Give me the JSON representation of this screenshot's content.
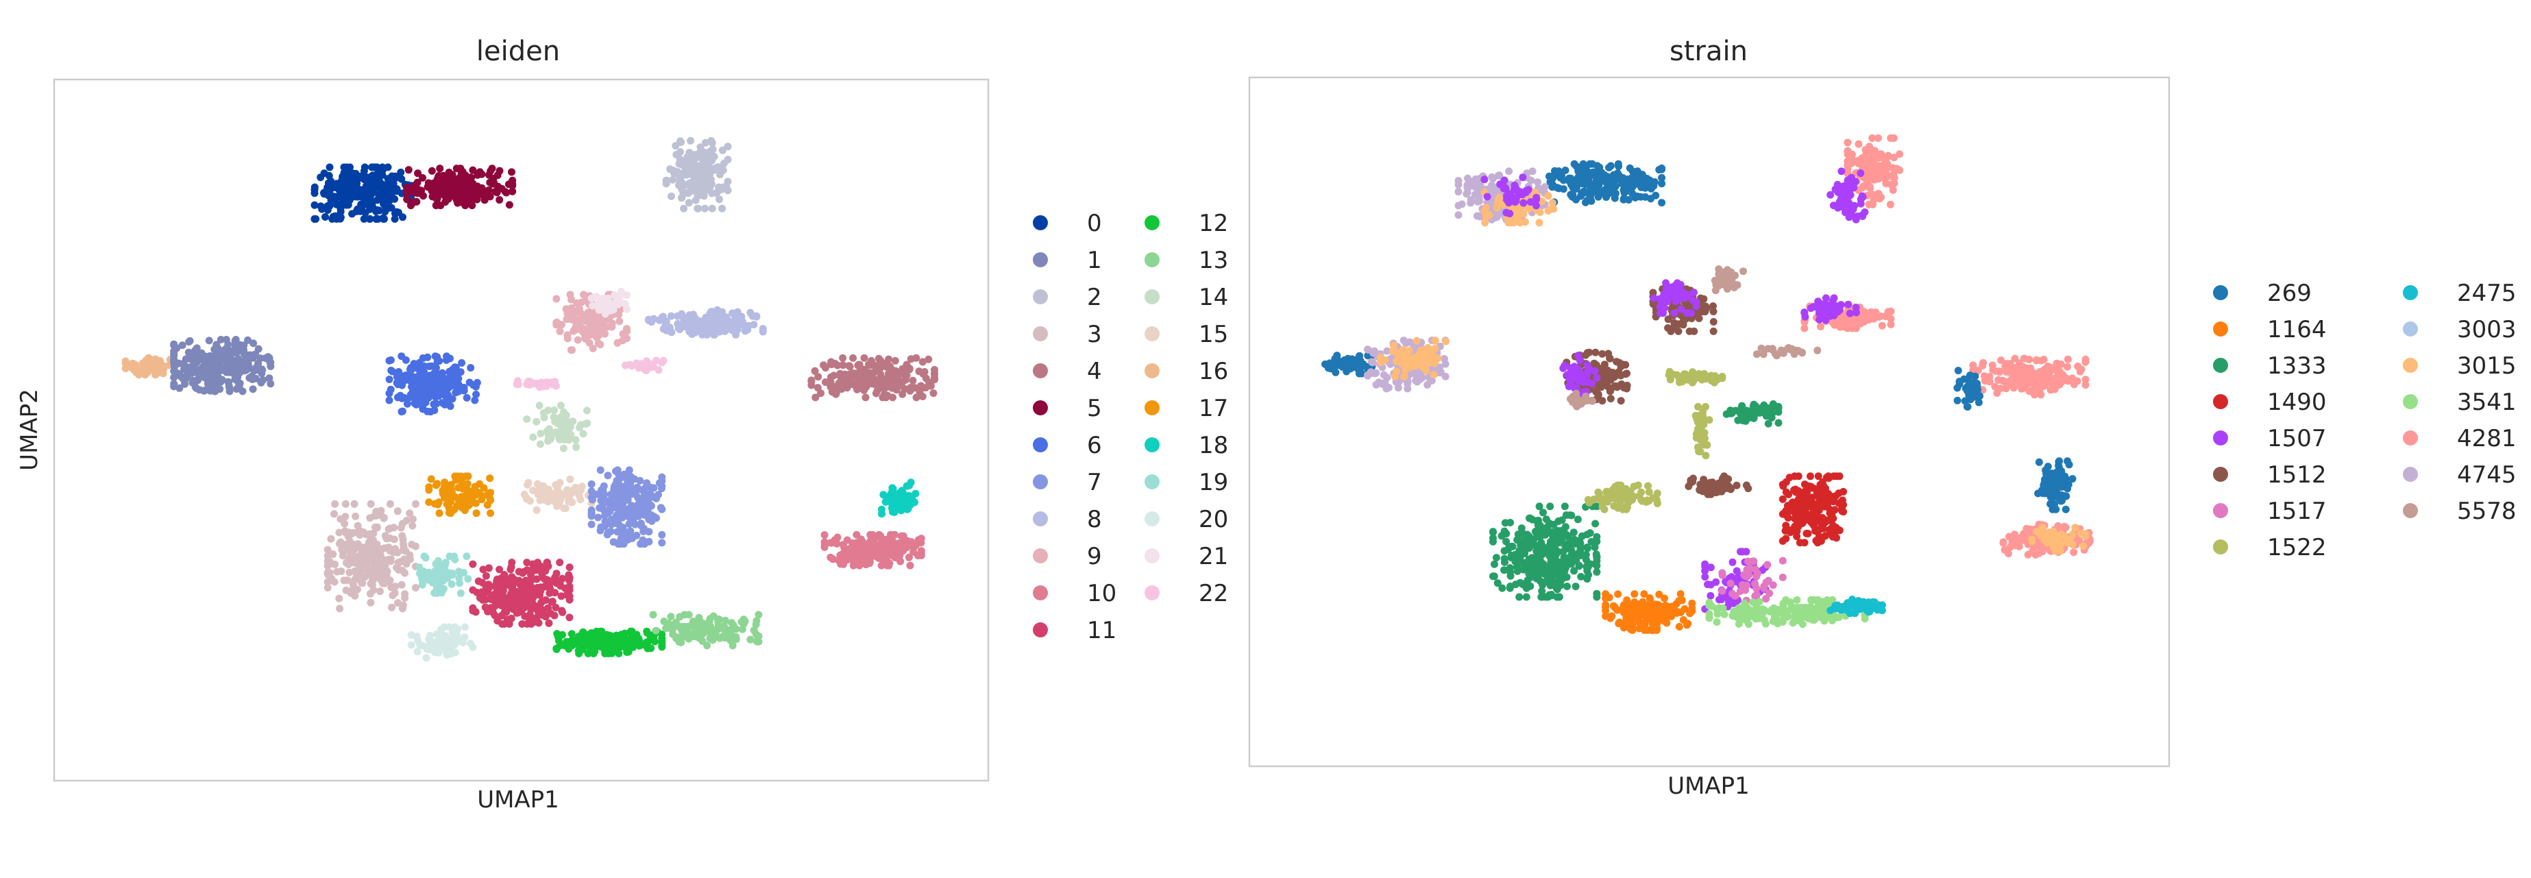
{
  "chart_data": [
    {
      "type": "scatter",
      "title": "leiden",
      "xlabel": "UMAP1",
      "ylabel": "UMAP2",
      "grid": false,
      "legend_position": "right",
      "legend_columns": 2,
      "categories": [
        {
          "label": "0",
          "color": "#023fa5"
        },
        {
          "label": "1",
          "color": "#7d87b9"
        },
        {
          "label": "2",
          "color": "#bec1d4"
        },
        {
          "label": "3",
          "color": "#d6bcc0"
        },
        {
          "label": "4",
          "color": "#bb7784"
        },
        {
          "label": "5",
          "color": "#8e063b"
        },
        {
          "label": "6",
          "color": "#4a6fe3"
        },
        {
          "label": "7",
          "color": "#8595e1"
        },
        {
          "label": "8",
          "color": "#b5bbe3"
        },
        {
          "label": "9",
          "color": "#e6afb9"
        },
        {
          "label": "10",
          "color": "#e07b91"
        },
        {
          "label": "11",
          "color": "#d33f6a"
        },
        {
          "label": "12",
          "color": "#11c638"
        },
        {
          "label": "13",
          "color": "#8dd593"
        },
        {
          "label": "14",
          "color": "#c6dec7"
        },
        {
          "label": "15",
          "color": "#ead3c6"
        },
        {
          "label": "16",
          "color": "#f0b98d"
        },
        {
          "label": "17",
          "color": "#ef9708"
        },
        {
          "label": "18",
          "color": "#0fcfc0"
        },
        {
          "label": "19",
          "color": "#9cded6"
        },
        {
          "label": "20",
          "color": "#d5eae7"
        },
        {
          "label": "21",
          "color": "#f3e1eb"
        },
        {
          "label": "22",
          "color": "#f6c4e1"
        }
      ],
      "clusters": [
        {
          "cat": "0",
          "cx": 3.2,
          "cy": 9.1,
          "rx": 0.55,
          "ry": 0.42,
          "n": 280
        },
        {
          "cat": "5",
          "cx": 4.3,
          "cy": 9.2,
          "rx": 0.6,
          "ry": 0.3,
          "n": 200
        },
        {
          "cat": "2",
          "cx": 7.0,
          "cy": 9.4,
          "rx": 0.35,
          "ry": 0.55,
          "n": 180
        },
        {
          "cat": "16",
          "cx": 0.8,
          "cy": 6.3,
          "rx": 0.3,
          "ry": 0.15,
          "n": 50
        },
        {
          "cat": "1",
          "cx": 1.6,
          "cy": 6.3,
          "rx": 0.55,
          "ry": 0.42,
          "n": 280
        },
        {
          "cat": "9",
          "cx": 5.8,
          "cy": 7.0,
          "rx": 0.4,
          "ry": 0.45,
          "n": 130
        },
        {
          "cat": "8",
          "cx": 7.1,
          "cy": 7.0,
          "rx": 0.65,
          "ry": 0.2,
          "n": 150
        },
        {
          "cat": "6",
          "cx": 4.0,
          "cy": 6.0,
          "rx": 0.5,
          "ry": 0.45,
          "n": 200
        },
        {
          "cat": "22",
          "cx": 5.2,
          "cy": 6.0,
          "rx": 0.3,
          "ry": 0.06,
          "n": 30
        },
        {
          "cat": "22",
          "cx": 6.4,
          "cy": 6.3,
          "rx": 0.3,
          "ry": 0.08,
          "n": 25
        },
        {
          "cat": "21",
          "cx": 6.0,
          "cy": 7.3,
          "rx": 0.2,
          "ry": 0.2,
          "n": 30
        },
        {
          "cat": "4",
          "cx": 9.0,
          "cy": 6.1,
          "rx": 0.7,
          "ry": 0.32,
          "n": 200
        },
        {
          "cat": "14",
          "cx": 5.4,
          "cy": 5.3,
          "rx": 0.35,
          "ry": 0.35,
          "n": 60
        },
        {
          "cat": "17",
          "cx": 4.3,
          "cy": 4.2,
          "rx": 0.35,
          "ry": 0.3,
          "n": 90
        },
        {
          "cat": "15",
          "cx": 5.4,
          "cy": 4.2,
          "rx": 0.4,
          "ry": 0.25,
          "n": 70
        },
        {
          "cat": "7",
          "cx": 6.2,
          "cy": 4.0,
          "rx": 0.4,
          "ry": 0.6,
          "n": 210
        },
        {
          "cat": "18",
          "cx": 9.3,
          "cy": 4.1,
          "rx": 0.2,
          "ry": 0.3,
          "n": 60
        },
        {
          "cat": "10",
          "cx": 9.0,
          "cy": 3.3,
          "rx": 0.55,
          "ry": 0.25,
          "n": 190
        },
        {
          "cat": "3",
          "cx": 3.3,
          "cy": 3.2,
          "rx": 0.5,
          "ry": 0.85,
          "n": 260
        },
        {
          "cat": "19",
          "cx": 4.1,
          "cy": 2.9,
          "rx": 0.3,
          "ry": 0.3,
          "n": 60
        },
        {
          "cat": "11",
          "cx": 5.0,
          "cy": 2.6,
          "rx": 0.55,
          "ry": 0.5,
          "n": 250
        },
        {
          "cat": "20",
          "cx": 4.1,
          "cy": 1.8,
          "rx": 0.35,
          "ry": 0.25,
          "n": 70
        },
        {
          "cat": "12",
          "cx": 6.0,
          "cy": 1.8,
          "rx": 0.6,
          "ry": 0.18,
          "n": 180
        },
        {
          "cat": "13",
          "cx": 7.1,
          "cy": 2.0,
          "rx": 0.6,
          "ry": 0.25,
          "n": 120
        }
      ]
    },
    {
      "type": "scatter",
      "title": "strain",
      "xlabel": "UMAP1",
      "ylabel": "",
      "grid": false,
      "legend_position": "right",
      "legend_columns": 2,
      "categories": [
        {
          "label": "269",
          "color": "#1f77b4"
        },
        {
          "label": "1164",
          "color": "#ff7f0e"
        },
        {
          "label": "1333",
          "color": "#279e68"
        },
        {
          "label": "1490",
          "color": "#d62728"
        },
        {
          "label": "1507",
          "color": "#aa40fc"
        },
        {
          "label": "1512",
          "color": "#8c564b"
        },
        {
          "label": "1517",
          "color": "#e377c2"
        },
        {
          "label": "1522",
          "color": "#b5bd61"
        },
        {
          "label": "2475",
          "color": "#17becf"
        },
        {
          "label": "3003",
          "color": "#aec7e8"
        },
        {
          "label": "3015",
          "color": "#ffbb78"
        },
        {
          "label": "3541",
          "color": "#98df8a"
        },
        {
          "label": "4281",
          "color": "#ff9896"
        },
        {
          "label": "4745",
          "color": "#c5b0d5"
        },
        {
          "label": "5578",
          "color": "#c49c94"
        }
      ],
      "clusters": [
        {
          "cat": "4745",
          "cx": 2.6,
          "cy": 9.0,
          "rx": 0.5,
          "ry": 0.4,
          "n": 200
        },
        {
          "cat": "269",
          "cx": 3.8,
          "cy": 9.2,
          "rx": 0.65,
          "ry": 0.32,
          "n": 200
        },
        {
          "cat": "3015",
          "cx": 2.8,
          "cy": 8.8,
          "rx": 0.4,
          "ry": 0.25,
          "n": 60
        },
        {
          "cat": "1507",
          "cx": 2.7,
          "cy": 9.0,
          "rx": 0.3,
          "ry": 0.3,
          "n": 40
        },
        {
          "cat": "4281",
          "cx": 6.9,
          "cy": 9.4,
          "rx": 0.3,
          "ry": 0.55,
          "n": 140
        },
        {
          "cat": "1507",
          "cx": 6.6,
          "cy": 9.0,
          "rx": 0.2,
          "ry": 0.4,
          "n": 50
        },
        {
          "cat": "269",
          "cx": 0.8,
          "cy": 6.2,
          "rx": 0.3,
          "ry": 0.15,
          "n": 60
        },
        {
          "cat": "4745",
          "cx": 1.5,
          "cy": 6.2,
          "rx": 0.45,
          "ry": 0.4,
          "n": 180
        },
        {
          "cat": "3015",
          "cx": 1.6,
          "cy": 6.3,
          "rx": 0.4,
          "ry": 0.3,
          "n": 60
        },
        {
          "cat": "8c564b_1512",
          "cx": 4.7,
          "cy": 7.1,
          "rx": 0.35,
          "ry": 0.35,
          "n": 90
        },
        {
          "cat": "1507",
          "cx": 4.6,
          "cy": 7.3,
          "rx": 0.25,
          "ry": 0.25,
          "n": 50
        },
        {
          "cat": "5578",
          "cx": 5.2,
          "cy": 7.6,
          "rx": 0.2,
          "ry": 0.18,
          "n": 30
        },
        {
          "cat": "4281",
          "cx": 6.6,
          "cy": 7.0,
          "rx": 0.5,
          "ry": 0.2,
          "n": 90
        },
        {
          "cat": "1507",
          "cx": 6.4,
          "cy": 7.1,
          "rx": 0.3,
          "ry": 0.2,
          "n": 40
        },
        {
          "cat": "5578",
          "cx": 5.9,
          "cy": 6.4,
          "rx": 0.35,
          "ry": 0.08,
          "n": 25
        },
        {
          "cat": "4281",
          "cx": 8.7,
          "cy": 6.0,
          "rx": 0.65,
          "ry": 0.3,
          "n": 170
        },
        {
          "cat": "269",
          "cx": 8.0,
          "cy": 5.8,
          "rx": 0.15,
          "ry": 0.3,
          "n": 30
        },
        {
          "cat": "8c564b_1512",
          "cx": 3.7,
          "cy": 6.0,
          "rx": 0.35,
          "ry": 0.4,
          "n": 120
        },
        {
          "cat": "1507",
          "cx": 3.5,
          "cy": 6.0,
          "rx": 0.2,
          "ry": 0.35,
          "n": 40
        },
        {
          "cat": "5578",
          "cx": 3.5,
          "cy": 5.6,
          "rx": 0.15,
          "ry": 0.12,
          "n": 20
        },
        {
          "cat": "1522",
          "cx": 4.8,
          "cy": 6.0,
          "rx": 0.35,
          "ry": 0.1,
          "n": 40
        },
        {
          "cat": "1522",
          "cx": 4.9,
          "cy": 5.0,
          "rx": 0.1,
          "ry": 0.5,
          "n": 40
        },
        {
          "cat": "279e68_1333",
          "cx": 5.5,
          "cy": 5.4,
          "rx": 0.3,
          "ry": 0.18,
          "n": 50
        },
        {
          "cat": "279e68_1333",
          "cx": 3.1,
          "cy": 3.1,
          "rx": 0.6,
          "ry": 0.75,
          "n": 320
        },
        {
          "cat": "1522",
          "cx": 4.0,
          "cy": 4.0,
          "rx": 0.4,
          "ry": 0.2,
          "n": 80
        },
        {
          "cat": "8c564b_1512",
          "cx": 5.1,
          "cy": 4.2,
          "rx": 0.35,
          "ry": 0.15,
          "n": 50
        },
        {
          "cat": "1490",
          "cx": 6.2,
          "cy": 3.8,
          "rx": 0.35,
          "ry": 0.55,
          "n": 200
        },
        {
          "cat": "1164",
          "cx": 4.3,
          "cy": 2.1,
          "rx": 0.5,
          "ry": 0.3,
          "n": 180
        },
        {
          "cat": "1507",
          "cx": 5.3,
          "cy": 2.6,
          "rx": 0.35,
          "ry": 0.5,
          "n": 60
        },
        {
          "cat": "1517",
          "cx": 5.5,
          "cy": 2.6,
          "rx": 0.35,
          "ry": 0.35,
          "n": 40
        },
        {
          "cat": "3541",
          "cx": 5.9,
          "cy": 2.1,
          "rx": 0.9,
          "ry": 0.2,
          "n": 180
        },
        {
          "cat": "2475",
          "cx": 6.7,
          "cy": 2.2,
          "rx": 0.3,
          "ry": 0.12,
          "n": 50
        },
        {
          "cat": "269",
          "cx": 9.0,
          "cy": 4.2,
          "rx": 0.2,
          "ry": 0.4,
          "n": 70
        },
        {
          "cat": "4281",
          "cx": 8.9,
          "cy": 3.3,
          "rx": 0.5,
          "ry": 0.25,
          "n": 150
        },
        {
          "cat": "3015",
          "cx": 9.0,
          "cy": 3.3,
          "rx": 0.35,
          "ry": 0.2,
          "n": 40
        }
      ]
    }
  ],
  "panels": [
    {
      "title": "leiden",
      "xlabel": "UMAP1",
      "ylabel": "UMAP2"
    },
    {
      "title": "strain",
      "xlabel": "UMAP1",
      "ylabel": ""
    }
  ]
}
